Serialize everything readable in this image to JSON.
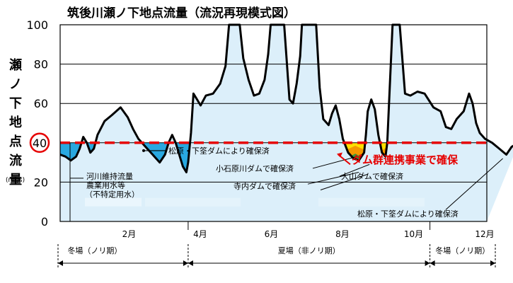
{
  "chart_data": {
    "type": "area",
    "title": "筑後川瀬ノ下地点流量（流況再現模式図）",
    "ylabel": "瀬ノ下地点流量",
    "yunit": "(m³/s)",
    "ylim": [
      0,
      100
    ],
    "yticks": [
      "0",
      "20",
      "40",
      "60",
      "80",
      "100"
    ],
    "xlim": [
      0,
      12
    ],
    "xticks": [
      {
        "x": 2,
        "label": "2月"
      },
      {
        "x": 4,
        "label": "4月"
      },
      {
        "x": 6,
        "label": "6月"
      },
      {
        "x": 8,
        "label": "8月"
      },
      {
        "x": 10,
        "label": "10月"
      },
      {
        "x": 12,
        "label": "12月"
      }
    ],
    "highlight_tick": "40",
    "reference_line": {
      "value": 40,
      "color": "#e60000"
    },
    "flow": [
      [
        0,
        34
      ],
      [
        0.15,
        33
      ],
      [
        0.3,
        31
      ],
      [
        0.45,
        33
      ],
      [
        0.55,
        37
      ],
      [
        0.65,
        43
      ],
      [
        0.75,
        40
      ],
      [
        0.85,
        35
      ],
      [
        0.95,
        37
      ],
      [
        1.05,
        44
      ],
      [
        1.25,
        51
      ],
      [
        1.45,
        54
      ],
      [
        1.7,
        58
      ],
      [
        1.9,
        53
      ],
      [
        2.05,
        47
      ],
      [
        2.2,
        42
      ],
      [
        2.4,
        38
      ],
      [
        2.6,
        34
      ],
      [
        2.8,
        30
      ],
      [
        2.95,
        34
      ],
      [
        3.05,
        40
      ],
      [
        3.15,
        44
      ],
      [
        3.25,
        40
      ],
      [
        3.35,
        34
      ],
      [
        3.45,
        28
      ],
      [
        3.55,
        25
      ],
      [
        3.6,
        30
      ],
      [
        3.68,
        45
      ],
      [
        3.75,
        65
      ],
      [
        3.85,
        62
      ],
      [
        3.95,
        59
      ],
      [
        4.1,
        64
      ],
      [
        4.3,
        65
      ],
      [
        4.5,
        70
      ],
      [
        4.65,
        79
      ],
      [
        4.75,
        100
      ],
      [
        5.05,
        100
      ],
      [
        5.15,
        83
      ],
      [
        5.3,
        72
      ],
      [
        5.45,
        64
      ],
      [
        5.6,
        65
      ],
      [
        5.75,
        72
      ],
      [
        5.85,
        85
      ],
      [
        5.92,
        100
      ],
      [
        6.3,
        100
      ],
      [
        6.45,
        62
      ],
      [
        6.55,
        60
      ],
      [
        6.65,
        70
      ],
      [
        6.75,
        84
      ],
      [
        6.8,
        100
      ],
      [
        7.2,
        100
      ],
      [
        7.3,
        68
      ],
      [
        7.4,
        52
      ],
      [
        7.55,
        49
      ],
      [
        7.65,
        55
      ],
      [
        7.75,
        59
      ],
      [
        7.85,
        52
      ],
      [
        7.95,
        42
      ],
      [
        8.1,
        35
      ],
      [
        8.25,
        32
      ],
      [
        8.4,
        31
      ],
      [
        8.55,
        35
      ],
      [
        8.6,
        44
      ],
      [
        8.65,
        56
      ],
      [
        8.75,
        62
      ],
      [
        8.85,
        57
      ],
      [
        8.95,
        44
      ],
      [
        9.05,
        35
      ],
      [
        9.15,
        33
      ],
      [
        9.2,
        40
      ],
      [
        9.3,
        80
      ],
      [
        9.35,
        100
      ],
      [
        9.55,
        100
      ],
      [
        9.7,
        65
      ],
      [
        9.85,
        64
      ],
      [
        10.05,
        66
      ],
      [
        10.25,
        65
      ],
      [
        10.5,
        58
      ],
      [
        10.7,
        56
      ],
      [
        10.85,
        48
      ],
      [
        11,
        47
      ],
      [
        11.15,
        52
      ],
      [
        11.35,
        56
      ],
      [
        11.5,
        65
      ],
      [
        11.6,
        60
      ],
      [
        11.7,
        50
      ],
      [
        11.8,
        45
      ],
      [
        11.95,
        42
      ],
      [
        12.15,
        40
      ],
      [
        12.35,
        37
      ],
      [
        12.55,
        34
      ],
      [
        12.7,
        38
      ],
      [
        12.9,
        40
      ]
    ],
    "annotations": [
      {
        "text": "河川維持流量",
        "value": 30
      },
      {
        "text": "農業用水等",
        "value": 20
      },
      {
        "text": "（不特定用水）",
        "value": ""
      },
      {
        "text": "松原・下筌ダムにより確保済"
      },
      {
        "text": "小石原川ダムで確保済"
      },
      {
        "text": "ダム群連携事業で確保"
      },
      {
        "text": "大山ダムで確保済"
      },
      {
        "text": "寺内ダムで確保済"
      },
      {
        "text": "松原・下筌ダムにより確保済"
      }
    ],
    "colors": {
      "flow_fill": "#dceffa",
      "deficit_blue": "#29a8e0",
      "yellow": "#ffe000",
      "orange": "#f39800",
      "green": "#3a9a3a",
      "grid": "#000000"
    }
  },
  "seasons": [
    {
      "label": "冬場（ノリ期）",
      "from": 0,
      "to": 3.6
    },
    {
      "label": "夏場（非ノリ期）",
      "from": 3.6,
      "to": 10.4
    },
    {
      "label": "冬場（ノリ期）",
      "from": 10.4,
      "to": 13.0
    }
  ]
}
